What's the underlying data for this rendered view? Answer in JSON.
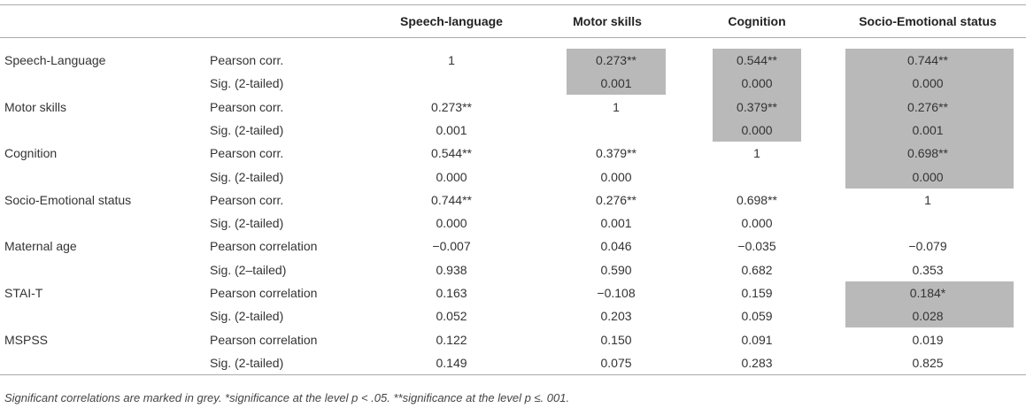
{
  "table": {
    "columns": [
      "Speech-language",
      "Motor skills",
      "Cognition",
      "Socio-Emotional status"
    ],
    "shade_color": "#b9b9b9",
    "rows": [
      {
        "variable": "Speech-Language",
        "stat": "Pearson corr.",
        "cells": [
          "1",
          "0.273**",
          "0.544**",
          "0.744**"
        ],
        "shaded": [
          false,
          true,
          true,
          true
        ]
      },
      {
        "stat": "Sig. (2-tailed)",
        "cells": [
          null,
          "0.001",
          "0.000",
          "0.000"
        ],
        "shaded": [
          false,
          true,
          true,
          true
        ]
      },
      {
        "variable": "Motor skills",
        "stat": "Pearson corr.",
        "cells": [
          "0.273**",
          "1",
          "0.379**",
          "0.276**"
        ],
        "shaded": [
          false,
          false,
          true,
          true
        ]
      },
      {
        "stat": "Sig. (2-tailed)",
        "cells": [
          "0.001",
          null,
          "0.000",
          "0.001"
        ],
        "shaded": [
          false,
          false,
          true,
          true
        ]
      },
      {
        "variable": "Cognition",
        "stat": "Pearson corr.",
        "cells": [
          "0.544**",
          "0.379**",
          "1",
          "0.698**"
        ],
        "shaded": [
          false,
          false,
          false,
          true
        ]
      },
      {
        "stat": "Sig. (2-tailed)",
        "cells": [
          "0.000",
          "0.000",
          null,
          "0.000"
        ],
        "shaded": [
          false,
          false,
          false,
          true
        ]
      },
      {
        "variable": "Socio-Emotional status",
        "stat": "Pearson corr.",
        "cells": [
          "0.744**",
          "0.276**",
          "0.698**",
          "1"
        ],
        "shaded": [
          false,
          false,
          false,
          false
        ]
      },
      {
        "stat": "Sig. (2-tailed)",
        "cells": [
          "0.000",
          "0.001",
          "0.000",
          null
        ],
        "shaded": [
          false,
          false,
          false,
          false
        ]
      },
      {
        "variable": "Maternal age",
        "stat": "Pearson correlation",
        "cells": [
          "−0.007",
          "0.046",
          "−0.035",
          "−0.079"
        ],
        "shaded": [
          false,
          false,
          false,
          false
        ]
      },
      {
        "stat": "Sig. (2–tailed)",
        "cells": [
          "0.938",
          "0.590",
          "0.682",
          "0.353"
        ],
        "shaded": [
          false,
          false,
          false,
          false
        ]
      },
      {
        "variable": "STAI-T",
        "stat": "Pearson correlation",
        "cells": [
          "0.163",
          "−0.108",
          "0.159",
          "0.184*"
        ],
        "shaded": [
          false,
          false,
          false,
          true
        ]
      },
      {
        "stat": "Sig. (2-tailed)",
        "cells": [
          "0.052",
          "0.203",
          "0.059",
          "0.028"
        ],
        "shaded": [
          false,
          false,
          false,
          true
        ]
      },
      {
        "variable": "MSPSS",
        "stat": "Pearson correlation",
        "cells": [
          "0.122",
          "0.150",
          "0.091",
          "0.019"
        ],
        "shaded": [
          false,
          false,
          false,
          false
        ]
      },
      {
        "stat": "Sig. (2-tailed)",
        "cells": [
          "0.149",
          "0.075",
          "0.283",
          "0.825"
        ],
        "shaded": [
          false,
          false,
          false,
          false
        ]
      }
    ],
    "footnote": "Significant correlations are marked in grey. *significance at the level p < .05. **significance at the level p ≤. 001."
  }
}
